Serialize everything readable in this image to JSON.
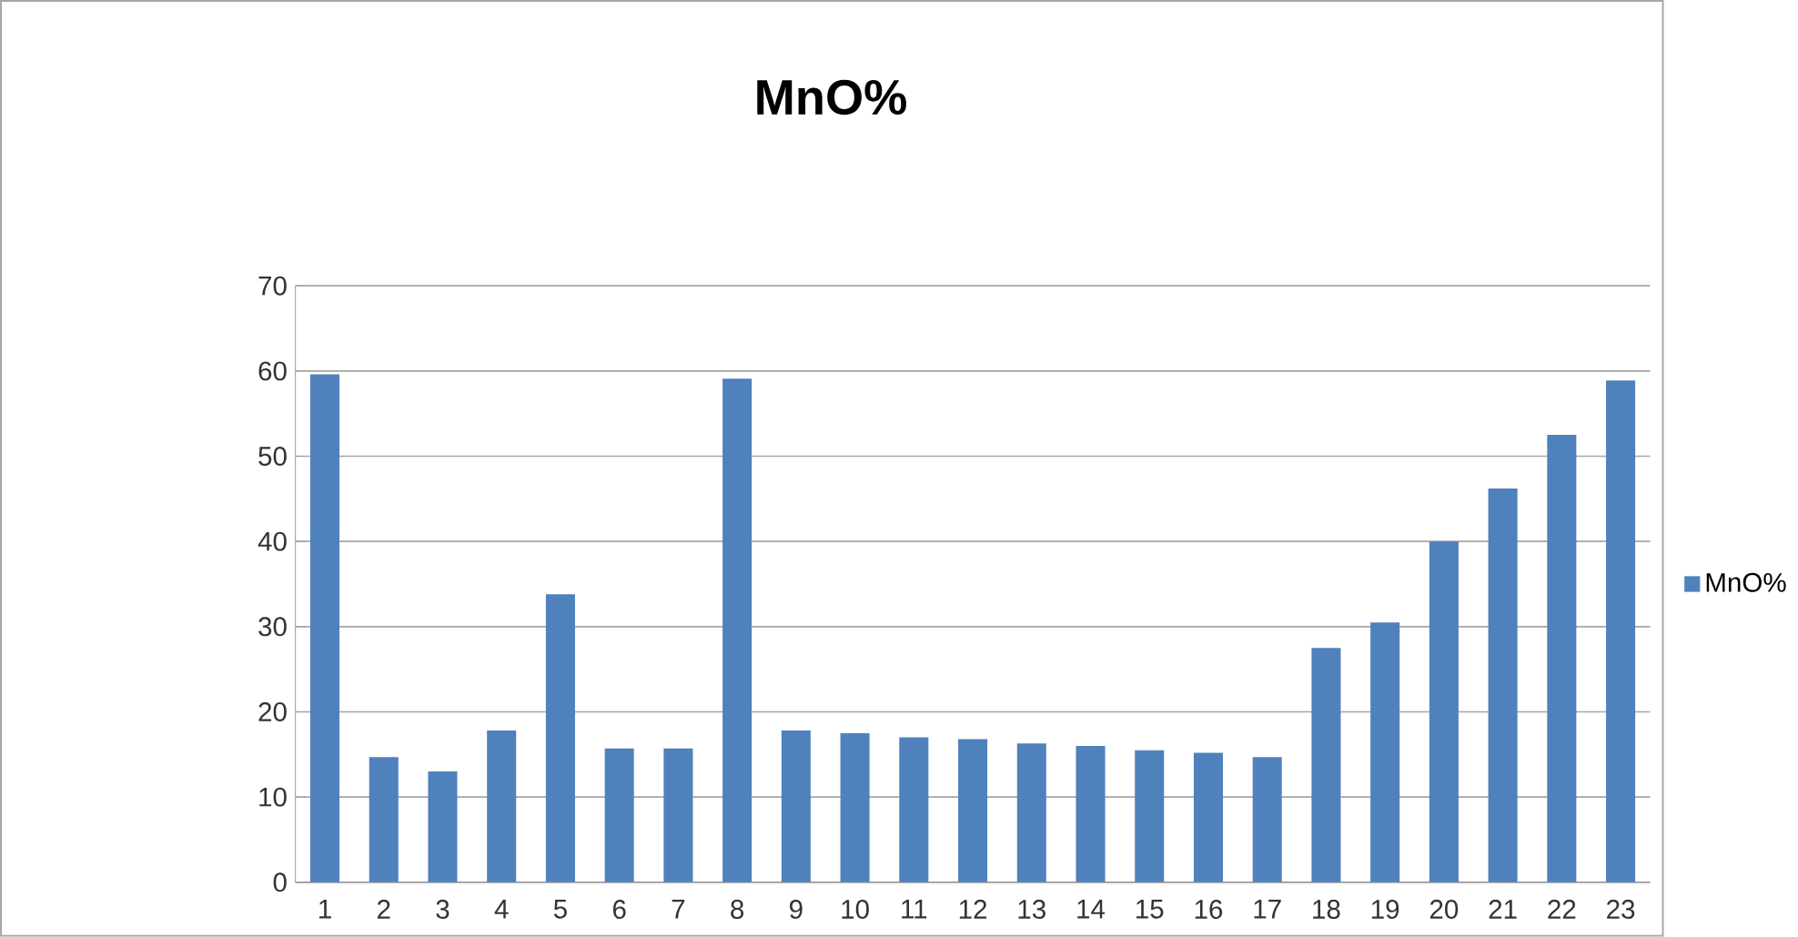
{
  "chart_data": {
    "type": "bar",
    "title": "MnO%",
    "categories": [
      "1",
      "2",
      "3",
      "4",
      "5",
      "6",
      "7",
      "8",
      "9",
      "10",
      "11",
      "12",
      "13",
      "14",
      "15",
      "16",
      "17",
      "18",
      "19",
      "20",
      "21",
      "22",
      "23"
    ],
    "series": [
      {
        "name": "MnO%",
        "color": "#4f81bd",
        "values": [
          59.6,
          14.7,
          13.0,
          17.8,
          33.8,
          15.7,
          15.7,
          59.1,
          17.8,
          17.5,
          17.0,
          16.8,
          16.3,
          16.0,
          15.5,
          15.2,
          14.7,
          27.5,
          30.5,
          40.0,
          46.2,
          52.5,
          58.9
        ]
      }
    ],
    "ylim": [
      0,
      70
    ],
    "yticks": [
      0,
      10,
      20,
      30,
      40,
      50,
      60,
      70
    ],
    "grid": "y",
    "legend": "right"
  }
}
